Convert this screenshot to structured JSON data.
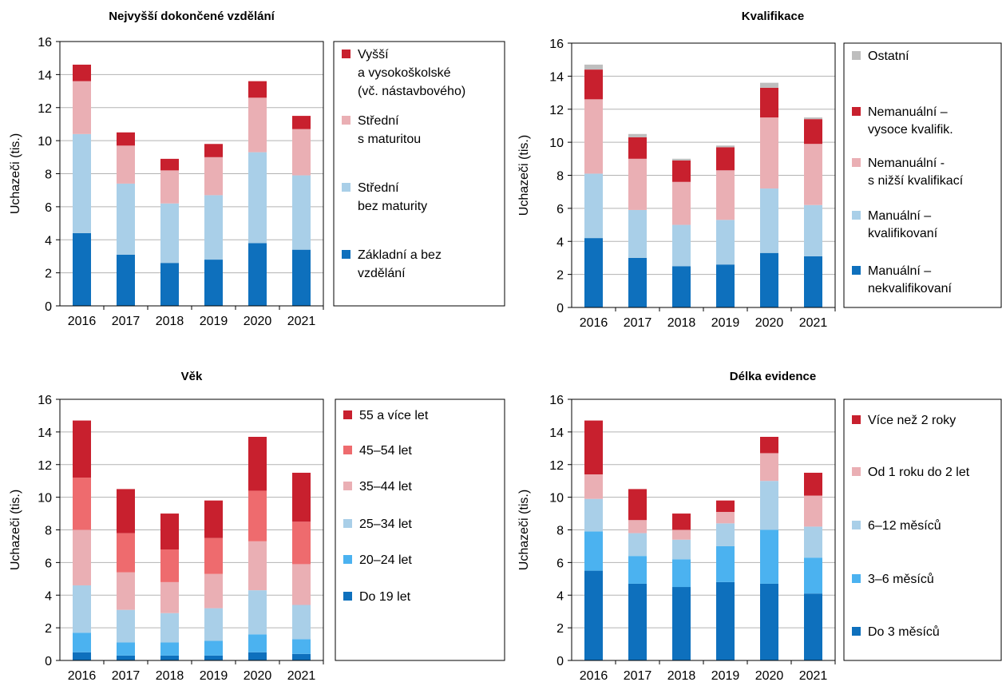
{
  "colors": {
    "dark_red": "#C8202E",
    "coral": "#EE6B6E",
    "light_pink": "#EAAFB4",
    "light_blue": "#A9CFE8",
    "sky_blue": "#4BB2F0",
    "blue": "#0E70BD",
    "gray": "#BEBEBE",
    "grid": "#B3B3B3"
  },
  "chart_data": [
    {
      "type": "bar",
      "stacked": true,
      "title": "Nejvyšší dokončené vzdělání",
      "ylabel": "Uchazeči (tis.)",
      "ylim": [
        0,
        16
      ],
      "yticks": [
        0,
        2,
        4,
        6,
        8,
        10,
        12,
        14,
        16
      ],
      "grid": true,
      "legend_position": "right",
      "categories": [
        "2016",
        "2017",
        "2018",
        "2019",
        "2020",
        "2021"
      ],
      "series": [
        {
          "name": "Základní a bez vzdělání",
          "legend_lines": [
            "Základní a bez",
            "vzdělání"
          ],
          "color_key": "blue",
          "values": [
            4.4,
            3.1,
            2.6,
            2.8,
            3.8,
            3.4
          ]
        },
        {
          "name": "Střední bez maturity",
          "legend_lines": [
            "Střední",
            "bez maturity"
          ],
          "color_key": "light_blue",
          "values": [
            6.0,
            4.3,
            3.6,
            3.9,
            5.5,
            4.5
          ]
        },
        {
          "name": "Střední s maturitou",
          "legend_lines": [
            "Střední",
            "s maturitou"
          ],
          "color_key": "light_pink",
          "values": [
            3.2,
            2.3,
            2.0,
            2.3,
            3.3,
            2.8
          ]
        },
        {
          "name": "Vyšší a vysokoškolské (vč. nástavbového)",
          "legend_lines": [
            "Vyšší",
            "a vysokoškolské",
            "(vč. nástavbového)"
          ],
          "color_key": "dark_red",
          "values": [
            1.0,
            0.8,
            0.7,
            0.8,
            1.0,
            0.8
          ]
        }
      ]
    },
    {
      "type": "bar",
      "stacked": true,
      "title": "Kvalifikace",
      "ylabel": "Uchazeči (tis.)",
      "ylim": [
        0,
        16
      ],
      "yticks": [
        0,
        2,
        4,
        6,
        8,
        10,
        12,
        14,
        16
      ],
      "grid": true,
      "legend_position": "right",
      "categories": [
        "2016",
        "2017",
        "2018",
        "2019",
        "2020",
        "2021"
      ],
      "series": [
        {
          "name": "Manuální – nekvalifikovaní",
          "legend_lines": [
            "Manuální –",
            "nekvalifikovaní"
          ],
          "color_key": "blue",
          "values": [
            4.2,
            3.0,
            2.5,
            2.6,
            3.3,
            3.1
          ]
        },
        {
          "name": "Manuální – kvalifikovaní",
          "legend_lines": [
            "Manuální –",
            "kvalifikovaní"
          ],
          "color_key": "light_blue",
          "values": [
            3.9,
            2.9,
            2.5,
            2.7,
            3.9,
            3.1
          ]
        },
        {
          "name": "Nemanuální - s nižší kvalifikací",
          "legend_lines": [
            "Nemanuální -",
            "s nižší kvalifikací"
          ],
          "color_key": "light_pink",
          "values": [
            4.5,
            3.1,
            2.6,
            3.0,
            4.3,
            3.7
          ]
        },
        {
          "name": "Nemanuální – vysoce kvalifik.",
          "legend_lines": [
            "Nemanuální –",
            "vysoce kvalifik."
          ],
          "color_key": "dark_red",
          "values": [
            1.8,
            1.3,
            1.3,
            1.4,
            1.8,
            1.5
          ]
        },
        {
          "name": "Ostatní",
          "legend_lines": [
            "Ostatní"
          ],
          "color_key": "gray",
          "values": [
            0.3,
            0.2,
            0.1,
            0.1,
            0.3,
            0.1
          ]
        }
      ]
    },
    {
      "type": "bar",
      "stacked": true,
      "title": "Věk",
      "ylabel": "Uchazeči (tis.)",
      "ylim": [
        0,
        16
      ],
      "yticks": [
        0,
        2,
        4,
        6,
        8,
        10,
        12,
        14,
        16
      ],
      "grid": true,
      "legend_position": "right",
      "categories": [
        "2016",
        "2017",
        "2018",
        "2019",
        "2020",
        "2021"
      ],
      "series": [
        {
          "name": "Do 19 let",
          "legend_lines": [
            "Do 19 let"
          ],
          "color_key": "blue",
          "values": [
            0.5,
            0.3,
            0.3,
            0.3,
            0.5,
            0.4
          ]
        },
        {
          "name": "20–24 let",
          "legend_lines": [
            "20–24 let"
          ],
          "color_key": "sky_blue",
          "values": [
            1.2,
            0.8,
            0.8,
            0.9,
            1.1,
            0.9
          ]
        },
        {
          "name": "25–34 let",
          "legend_lines": [
            "25–34 let"
          ],
          "color_key": "light_blue",
          "values": [
            2.9,
            2.0,
            1.8,
            2.0,
            2.7,
            2.1
          ]
        },
        {
          "name": "35–44 let",
          "legend_lines": [
            "35–44 let"
          ],
          "color_key": "light_pink",
          "values": [
            3.4,
            2.3,
            1.9,
            2.1,
            3.0,
            2.5
          ]
        },
        {
          "name": "45–54 let",
          "legend_lines": [
            "45–54 let"
          ],
          "color_key": "coral",
          "values": [
            3.2,
            2.4,
            2.0,
            2.2,
            3.1,
            2.6
          ]
        },
        {
          "name": "55 a více let",
          "legend_lines": [
            "55 a více let"
          ],
          "color_key": "dark_red",
          "values": [
            3.5,
            2.7,
            2.2,
            2.3,
            3.3,
            3.0
          ]
        }
      ]
    },
    {
      "type": "bar",
      "stacked": true,
      "title": "Délka evidence",
      "ylabel": "Uchazeči (tis.)",
      "ylim": [
        0,
        16
      ],
      "yticks": [
        0,
        2,
        4,
        6,
        8,
        10,
        12,
        14,
        16
      ],
      "grid": true,
      "legend_position": "right",
      "categories": [
        "2016",
        "2017",
        "2018",
        "2019",
        "2020",
        "2021"
      ],
      "series": [
        {
          "name": "Do 3 měsíců",
          "legend_lines": [
            "Do 3 měsíců"
          ],
          "color_key": "blue",
          "values": [
            5.5,
            4.7,
            4.5,
            4.8,
            4.7,
            4.1
          ]
        },
        {
          "name": "3–6 měsíců",
          "legend_lines": [
            "3–6 měsíců"
          ],
          "color_key": "sky_blue",
          "values": [
            2.4,
            1.7,
            1.7,
            2.2,
            3.3,
            2.2
          ]
        },
        {
          "name": "6–12 měsíců",
          "legend_lines": [
            "6–12 měsíců"
          ],
          "color_key": "light_blue",
          "values": [
            2.0,
            1.4,
            1.2,
            1.4,
            3.0,
            1.9
          ]
        },
        {
          "name": "Od 1 roku do 2 let",
          "legend_lines": [
            "Od 1 roku do 2 let"
          ],
          "color_key": "light_pink",
          "values": [
            1.5,
            0.8,
            0.6,
            0.7,
            1.7,
            1.9
          ]
        },
        {
          "name": "Více než 2 roky",
          "legend_lines": [
            "Více než 2 roky"
          ],
          "color_key": "dark_red",
          "values": [
            3.3,
            1.9,
            1.0,
            0.7,
            1.0,
            1.4
          ]
        }
      ]
    }
  ]
}
